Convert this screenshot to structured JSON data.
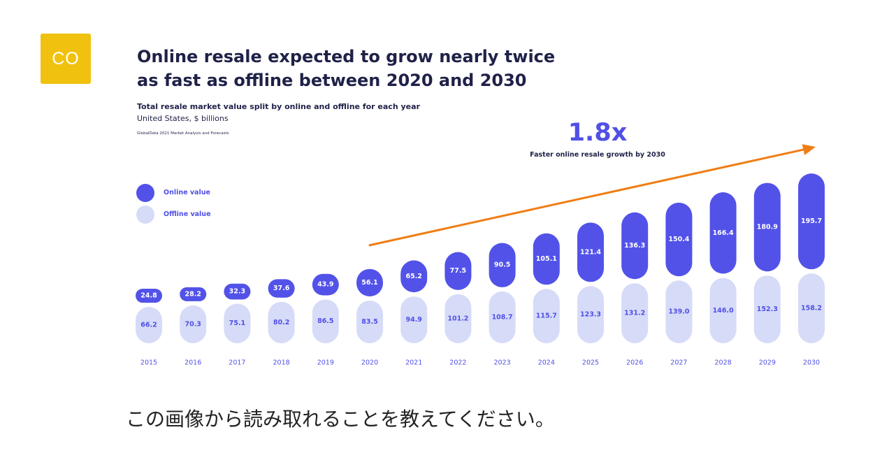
{
  "avatar": {
    "initials": "CO"
  },
  "question": "この画像から読み取れることを教えてください。",
  "colors": {
    "online": "#5252e9",
    "offline": "#d6dbf8",
    "arrow": "#f07d14",
    "text_dark": "#1f2148",
    "accent": "#5050e6",
    "avatar_bg": "#f0c20f"
  },
  "chart_data": {
    "type": "bar",
    "title": "Online resale expected to grow nearly twice as fast as offline between 2020 and 2030",
    "subtitle": "Total resale market value split by online and offline for each year",
    "units": "United States, $ billions",
    "source": "GlobalData 2021 Market Analysis and Forecasts",
    "stacked": true,
    "categories": [
      "2015",
      "2016",
      "2017",
      "2018",
      "2019",
      "2020",
      "2021",
      "2022",
      "2023",
      "2024",
      "2025",
      "2026",
      "2027",
      "2028",
      "2029",
      "2030"
    ],
    "series": [
      {
        "name": "Online value",
        "values": [
          24.8,
          28.2,
          32.3,
          37.6,
          43.9,
          56.1,
          65.2,
          77.5,
          90.5,
          105.1,
          121.4,
          136.3,
          150.4,
          166.4,
          180.9,
          195.7
        ]
      },
      {
        "name": "Offline value",
        "values": [
          66.2,
          70.3,
          75.1,
          80.2,
          86.5,
          83.5,
          94.9,
          101.2,
          108.7,
          115.7,
          123.3,
          131.2,
          139.0,
          146.0,
          152.3,
          158.2
        ]
      }
    ],
    "annotation": {
      "value": "1.8x",
      "text": "Faster online resale growth by 2030",
      "arrow_from": "2020",
      "arrow_to": "2030"
    },
    "legend": {
      "position": "left",
      "entries": [
        "Online value",
        "Offline value"
      ]
    },
    "ylim": [
      0,
      360
    ],
    "grid": false
  }
}
